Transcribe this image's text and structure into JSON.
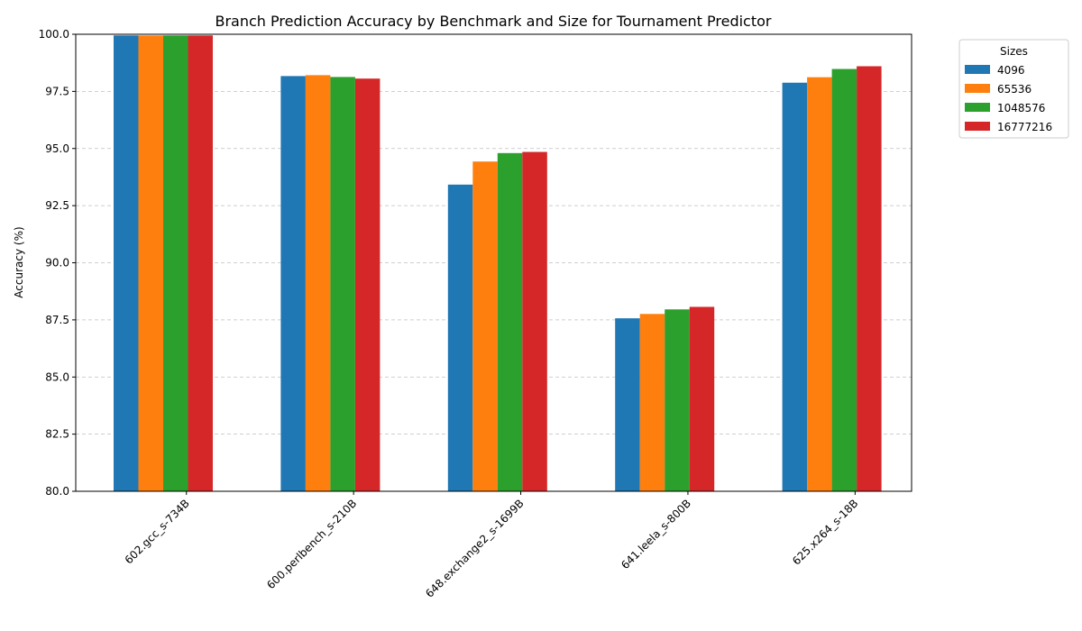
{
  "chart_data": {
    "type": "bar",
    "title": "Branch Prediction Accuracy by Benchmark and Size for Tournament Predictor",
    "xlabel": "",
    "ylabel": "Accuracy (%)",
    "ylim": [
      80.0,
      100.0
    ],
    "yticks": [
      "80.0",
      "82.5",
      "85.0",
      "87.5",
      "90.0",
      "92.5",
      "95.0",
      "97.5",
      "100.0"
    ],
    "grid": "y-dashed",
    "categories": [
      "602.gcc_s-734B",
      "600.perlbench_s-210B",
      "648.exchange2_s-1699B",
      "641.leela_s-800B",
      "625.x264_s-18B"
    ],
    "legend": {
      "title": "Sizes",
      "placement": "outside-top-right"
    },
    "series": [
      {
        "name": "4096",
        "color": "#1f77b4",
        "values": [
          99.95,
          98.17,
          93.42,
          87.57,
          97.88
        ]
      },
      {
        "name": "65536",
        "color": "#ff7f0e",
        "values": [
          99.95,
          98.21,
          94.43,
          87.76,
          98.12
        ]
      },
      {
        "name": "1048576",
        "color": "#2ca02c",
        "values": [
          99.95,
          98.13,
          94.8,
          87.96,
          98.48
        ]
      },
      {
        "name": "16777216",
        "color": "#d62728",
        "values": [
          99.95,
          98.06,
          94.85,
          88.07,
          98.6
        ]
      }
    ]
  }
}
